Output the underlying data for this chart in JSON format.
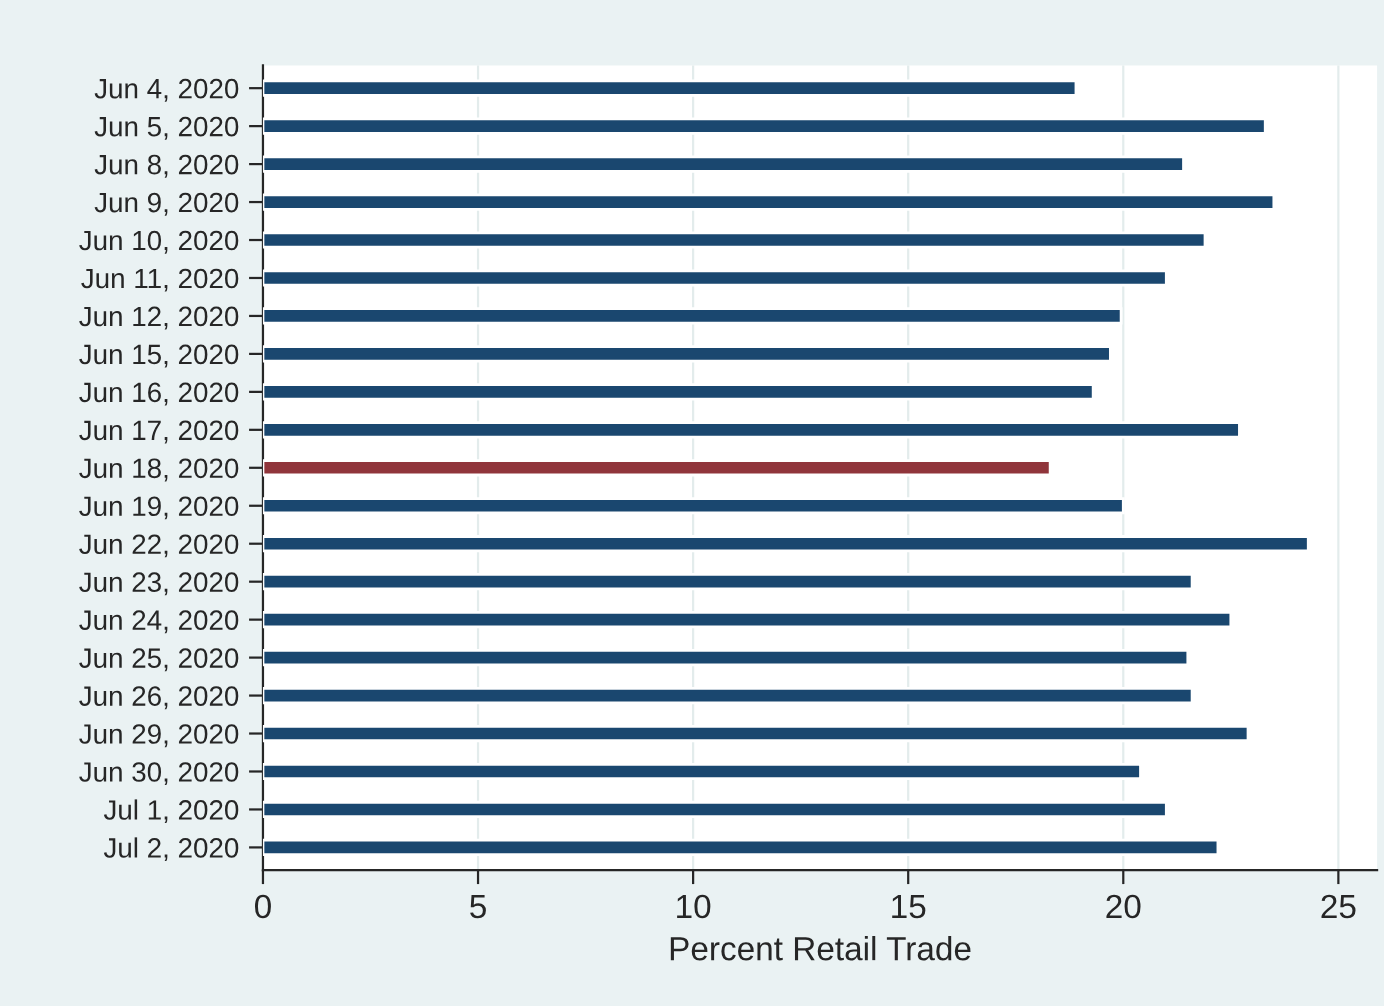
{
  "chart_data": {
    "type": "bar",
    "orientation": "horizontal",
    "xlabel": "Percent Retail Trade",
    "categories": [
      "Jun 4, 2020",
      "Jun 5, 2020",
      "Jun 8, 2020",
      "Jun 9, 2020",
      "Jun 10, 2020",
      "Jun 11, 2020",
      "Jun 12, 2020",
      "Jun 15, 2020",
      "Jun 16, 2020",
      "Jun 17, 2020",
      "Jun 18, 2020",
      "Jun 19, 2020",
      "Jun 22, 2020",
      "Jun 23, 2020",
      "Jun 24, 2020",
      "Jun 25, 2020",
      "Jun 26, 2020",
      "Jun 29, 2020",
      "Jun 30, 2020",
      "Jul 1, 2020",
      "Jul 2, 2020"
    ],
    "values": [
      18.9,
      23.3,
      21.4,
      23.5,
      21.9,
      21.0,
      19.95,
      19.7,
      19.3,
      22.7,
      18.3,
      20.0,
      24.3,
      21.6,
      22.5,
      21.5,
      21.6,
      22.9,
      20.4,
      21.0,
      22.2
    ],
    "colors": [
      "#1a476f",
      "#1a476f",
      "#1a476f",
      "#1a476f",
      "#1a476f",
      "#1a476f",
      "#1a476f",
      "#1a476f",
      "#1a476f",
      "#1a476f",
      "#90353b",
      "#1a476f",
      "#1a476f",
      "#1a476f",
      "#1a476f",
      "#1a476f",
      "#1a476f",
      "#1a476f",
      "#1a476f",
      "#1a476f",
      "#1a476f"
    ],
    "xlim": [
      0,
      25.9
    ],
    "xticks": [
      0,
      5,
      10,
      15,
      20,
      25
    ],
    "grid": "x"
  }
}
